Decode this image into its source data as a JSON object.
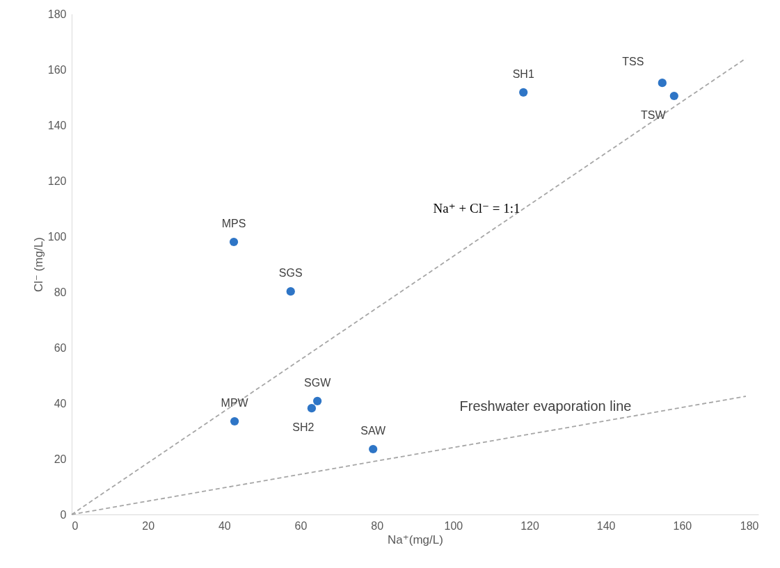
{
  "chart_data": {
    "type": "scatter",
    "xlabel": "Na⁺(mg/L)",
    "ylabel": "Cl⁻ (mg/L)",
    "xlim": [
      0,
      180
    ],
    "ylim": [
      0,
      180
    ],
    "xticks": [
      0,
      20,
      40,
      60,
      80,
      100,
      120,
      140,
      160,
      180
    ],
    "yticks": [
      0,
      20,
      40,
      60,
      80,
      100,
      120,
      140,
      160,
      180
    ],
    "grid": false,
    "series": [
      {
        "color": "#2e75c6",
        "marker": "circle",
        "x": [
          42.5,
          57.4,
          118.4,
          154.8,
          157.9,
          42.7,
          62.9,
          64.4,
          79
        ],
        "values": [
          98,
          80.2,
          151.8,
          155.2,
          150.5,
          33.5,
          38.2,
          40.8,
          23.5
        ]
      },
      {
        "type": "line",
        "color": "#a6a6a6",
        "line_style": "dashed",
        "x": [
          0,
          176.7
        ],
        "values": [
          0,
          164
        ]
      },
      {
        "type": "line",
        "color": "#a6a6a6",
        "line_style": "dashed",
        "x": [
          0,
          176.7
        ],
        "values": [
          0,
          42.5
        ]
      }
    ],
    "annotations": [
      {
        "text": "MPS",
        "x": 42.5,
        "y": 98
      },
      {
        "text": "SGS",
        "x": 57.4,
        "y": 80.2
      },
      {
        "text": "SH1",
        "x": 118.4,
        "y": 151.8
      },
      {
        "text": "TSS",
        "x": 154.8,
        "y": 155.2
      },
      {
        "text": "TSW",
        "x": 157.9,
        "y": 150.5
      },
      {
        "text": "MPW",
        "x": 42.7,
        "y": 33.5
      },
      {
        "text": "SH2",
        "x": 62.9,
        "y": 38.2
      },
      {
        "text": "SGW",
        "x": 64.4,
        "y": 40.8
      },
      {
        "text": "SAW",
        "x": 79,
        "y": 23.5
      },
      "Na⁺ + Cl⁻ = 1:1",
      "Freshwater evaporation line"
    ]
  }
}
